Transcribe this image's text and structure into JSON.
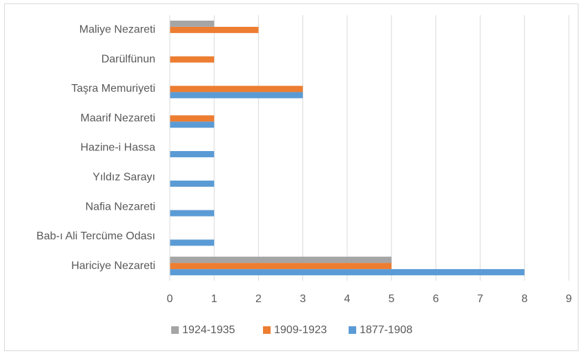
{
  "chart_data": {
    "type": "bar",
    "orientation": "horizontal",
    "categories": [
      "Hariciye Nezareti",
      "Bab-ı Ali Tercüme Odası",
      "Nafia Nezareti",
      "Yıldız Sarayı",
      "Hazine-i Hassa",
      "Maarif Nezareti",
      "Taşra Memuriyeti",
      "Darülfünun",
      "Maliye Nezareti"
    ],
    "series": [
      {
        "name": "1877-1908",
        "color": "#5b9bd5",
        "values": [
          8,
          1,
          1,
          1,
          1,
          1,
          3,
          0,
          0
        ]
      },
      {
        "name": "1909-1923",
        "color": "#ed7d31",
        "values": [
          5,
          0,
          0,
          0,
          0,
          1,
          3,
          1,
          2
        ]
      },
      {
        "name": "1924-1935",
        "color": "#a5a5a5",
        "values": [
          5,
          0,
          0,
          0,
          0,
          0,
          0,
          0,
          1
        ]
      }
    ],
    "xlim": [
      0,
      9
    ],
    "xticks": [
      0,
      1,
      2,
      3,
      4,
      5,
      6,
      7,
      8,
      9
    ],
    "grid": true,
    "legend": "bottom"
  }
}
